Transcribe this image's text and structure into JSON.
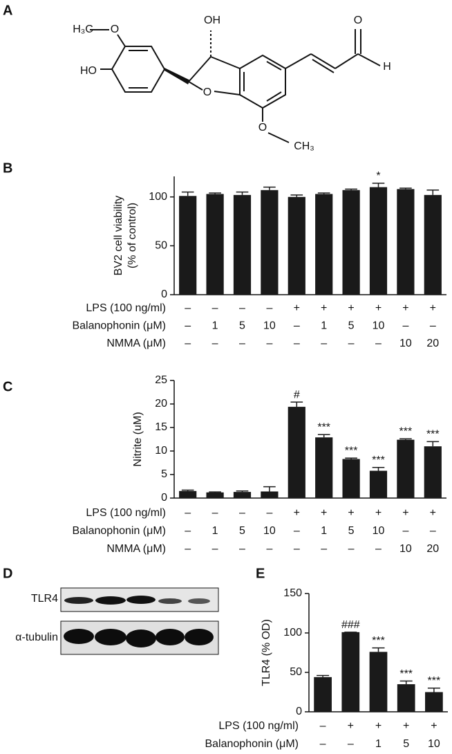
{
  "panel_labels": [
    "A",
    "B",
    "C",
    "D",
    "E"
  ],
  "structure": {
    "atoms": [
      "H₃C",
      "O",
      "OH",
      "HO",
      "O",
      "O",
      "H",
      "O",
      "CH₃"
    ]
  },
  "blot": {
    "rows": [
      "TLR4",
      "α-tubulin"
    ]
  },
  "chart_data": [
    {
      "type": "bar",
      "ylabel": [
        "BV2 cell viability",
        "(% of control)"
      ],
      "color": "#1a1a1a",
      "values": [
        101,
        103,
        102,
        107,
        100,
        103,
        107,
        110,
        108,
        102
      ],
      "errors": [
        4,
        1,
        3,
        3,
        2,
        1,
        1,
        4,
        1,
        5
      ],
      "annotations": [
        null,
        null,
        null,
        null,
        null,
        null,
        null,
        "*",
        null,
        null
      ],
      "ylim": [
        0,
        121
      ],
      "yticks": [
        0,
        50,
        100
      ],
      "conditions": [
        {
          "label": "LPS (100 ng/ml)",
          "values": [
            "–",
            "–",
            "–",
            "–",
            "+",
            "+",
            "+",
            "+",
            "+",
            "+"
          ]
        },
        {
          "label": "Balanophonin (μM)",
          "values": [
            "–",
            "1",
            "5",
            "10",
            "–",
            "1",
            "5",
            "10",
            "–",
            "–"
          ]
        },
        {
          "label": "NMMA (μM)",
          "values": [
            "–",
            "–",
            "–",
            "–",
            "–",
            "–",
            "–",
            "–",
            "10",
            "20"
          ]
        }
      ]
    },
    {
      "type": "bar",
      "ylabel": [
        "Nitrite (uM)"
      ],
      "color": "#1a1a1a",
      "values": [
        1.5,
        1.2,
        1.3,
        1.4,
        19.4,
        12.9,
        8.3,
        5.8,
        12.4,
        11.0
      ],
      "errors": [
        0.2,
        0.1,
        0.2,
        1.0,
        1.0,
        0.6,
        0.2,
        0.7,
        0.2,
        1.0
      ],
      "annotations": [
        null,
        null,
        null,
        null,
        "#",
        "***",
        "***",
        "***",
        "***",
        "***"
      ],
      "ylim": [
        0,
        25
      ],
      "yticks": [
        0,
        5,
        10,
        15,
        20,
        25
      ],
      "conditions": [
        {
          "label": "LPS (100 ng/ml)",
          "values": [
            "–",
            "–",
            "–",
            "–",
            "+",
            "+",
            "+",
            "+",
            "+",
            "+"
          ]
        },
        {
          "label": "Balanophonin (μM)",
          "values": [
            "–",
            "1",
            "5",
            "10",
            "–",
            "1",
            "5",
            "10",
            "–",
            "–"
          ]
        },
        {
          "label": "NMMA (μM)",
          "values": [
            "–",
            "–",
            "–",
            "–",
            "–",
            "–",
            "–",
            "–",
            "10",
            "20"
          ]
        }
      ]
    },
    {
      "type": "bar",
      "ylabel": [
        "TLR4 (% OD)"
      ],
      "color": "#1a1a1a",
      "values": [
        44,
        101,
        76,
        35,
        25
      ],
      "errors": [
        2,
        0,
        5,
        4,
        5
      ],
      "annotations": [
        null,
        "###",
        "***",
        "***",
        "***"
      ],
      "ylim": [
        0,
        150
      ],
      "yticks": [
        0,
        50,
        100,
        150
      ],
      "conditions": [
        {
          "label": "LPS (100 ng/ml)",
          "values": [
            "–",
            "+",
            "+",
            "+",
            "+"
          ]
        },
        {
          "label": "Balanophonin (μM)",
          "values": [
            "–",
            "–",
            "1",
            "5",
            "10"
          ]
        }
      ]
    }
  ]
}
